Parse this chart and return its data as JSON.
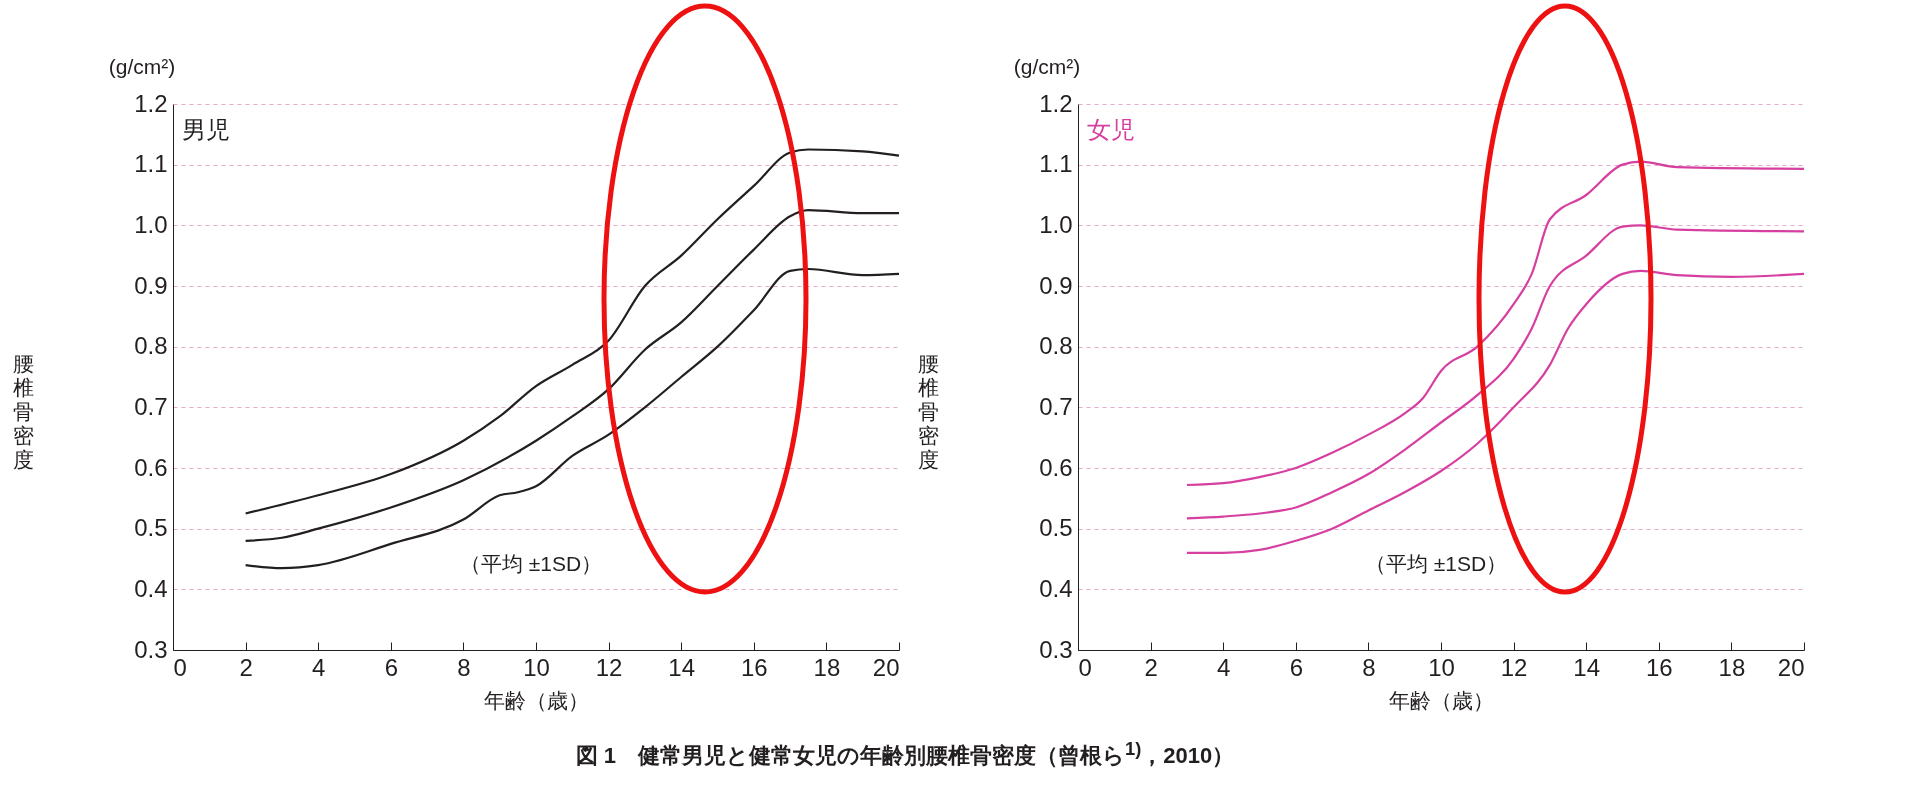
{
  "chart_data": [
    {
      "type": "line",
      "title": "男児",
      "xlabel": "年齢（歳）",
      "ylabel": "腰椎骨密度",
      "xlim": [
        0,
        20
      ],
      "ylim": [
        0.3,
        1.2
      ],
      "xticks": [
        0,
        2,
        4,
        6,
        8,
        10,
        12,
        14,
        16,
        18,
        20
      ],
      "yticks": [
        0.3,
        0.4,
        0.5,
        0.6,
        0.7,
        0.8,
        0.9,
        {
          "value": 1,
          "label": "1.0"
        },
        1.1,
        1.2
      ],
      "grid": "y",
      "annotations": [
        "(g/cm²)",
        "（平均 ±1SD）",
        "図 1　健常男児と健常女児の年齢別腰椎骨密度（曾根ら$^{1)}$，2010）"
      ],
      "series": [
        {
          "color": "#231f20",
          "x": [
            2,
            4,
            6,
            8,
            9,
            10,
            11,
            12,
            13,
            14,
            15,
            16,
            17,
            17.5,
            19,
            20
          ],
          "values": [
            0.525,
            0.555,
            0.59,
            0.645,
            0.685,
            0.735,
            0.77,
            0.81,
            0.9,
            0.95,
            1.01,
            1.065,
            1.12,
            1.125,
            1.122,
            1.115
          ]
        },
        {
          "color": "#231f20",
          "x": [
            2,
            3,
            4,
            6,
            8,
            10,
            11,
            12,
            13,
            14,
            15,
            16,
            17,
            17.5,
            19,
            20
          ],
          "values": [
            0.48,
            0.485,
            0.5,
            0.535,
            0.58,
            0.645,
            0.685,
            0.73,
            0.795,
            0.84,
            0.9,
            0.96,
            1.015,
            1.025,
            1.02,
            1.02
          ]
        },
        {
          "color": "#231f20",
          "x": [
            2,
            3,
            4,
            6,
            8,
            9,
            9.5,
            10,
            11,
            12,
            13,
            14,
            15,
            16,
            17,
            17.5,
            19,
            20
          ],
          "values": [
            0.44,
            0.435,
            0.44,
            0.475,
            0.515,
            0.555,
            0.56,
            0.57,
            0.62,
            0.655,
            0.7,
            0.75,
            0.8,
            0.86,
            0.925,
            0.928,
            0.918,
            0.92
          ]
        }
      ]
    },
    {
      "type": "line",
      "title": "女児",
      "xlabel": "年齢（歳）",
      "ylabel": "腰椎骨密度",
      "xlim": [
        0,
        20
      ],
      "ylim": [
        0.3,
        1.2
      ],
      "xticks": [
        0,
        2,
        4,
        6,
        8,
        10,
        12,
        14,
        16,
        18,
        20
      ],
      "yticks": [
        0.3,
        0.4,
        0.5,
        0.6,
        0.7,
        0.8,
        0.9,
        {
          "value": 1,
          "label": "1.0"
        },
        1.1,
        1.2
      ],
      "grid": "y",
      "annotations": [
        "(g/cm²)",
        "（平均 ±1SD）"
      ],
      "series": [
        {
          "color": "#d63fa0",
          "x": [
            3,
            4,
            5,
            6,
            7,
            8,
            9,
            9.5,
            10,
            11,
            12,
            12.5,
            13,
            14,
            15,
            15.5,
            16.5,
            20
          ],
          "values": [
            0.572,
            0.575,
            0.585,
            0.6,
            0.625,
            0.655,
            0.69,
            0.715,
            0.76,
            0.8,
            0.87,
            0.92,
            1.01,
            1.05,
            1.1,
            1.105,
            1.096,
            1.093
          ]
        },
        {
          "color": "#d63fa0",
          "x": [
            3,
            4,
            5,
            6,
            7,
            8,
            9,
            10,
            11,
            12,
            12.5,
            13,
            14,
            15,
            15.5,
            16.5,
            20
          ],
          "values": [
            0.517,
            0.52,
            0.525,
            0.535,
            0.56,
            0.59,
            0.63,
            0.675,
            0.72,
            0.78,
            0.83,
            0.9,
            0.95,
            0.998,
            1.0,
            0.993,
            0.99
          ]
        },
        {
          "color": "#d63fa0",
          "x": [
            3,
            4,
            5,
            6,
            7,
            8,
            9,
            10,
            11,
            12,
            13,
            13.5,
            14,
            15,
            15.5,
            16.5,
            18,
            20
          ],
          "values": [
            0.46,
            0.46,
            0.465,
            0.48,
            0.5,
            0.53,
            0.56,
            0.595,
            0.64,
            0.7,
            0.77,
            0.83,
            0.87,
            0.92,
            0.925,
            0.918,
            0.915,
            0.92
          ]
        }
      ]
    }
  ]
}
